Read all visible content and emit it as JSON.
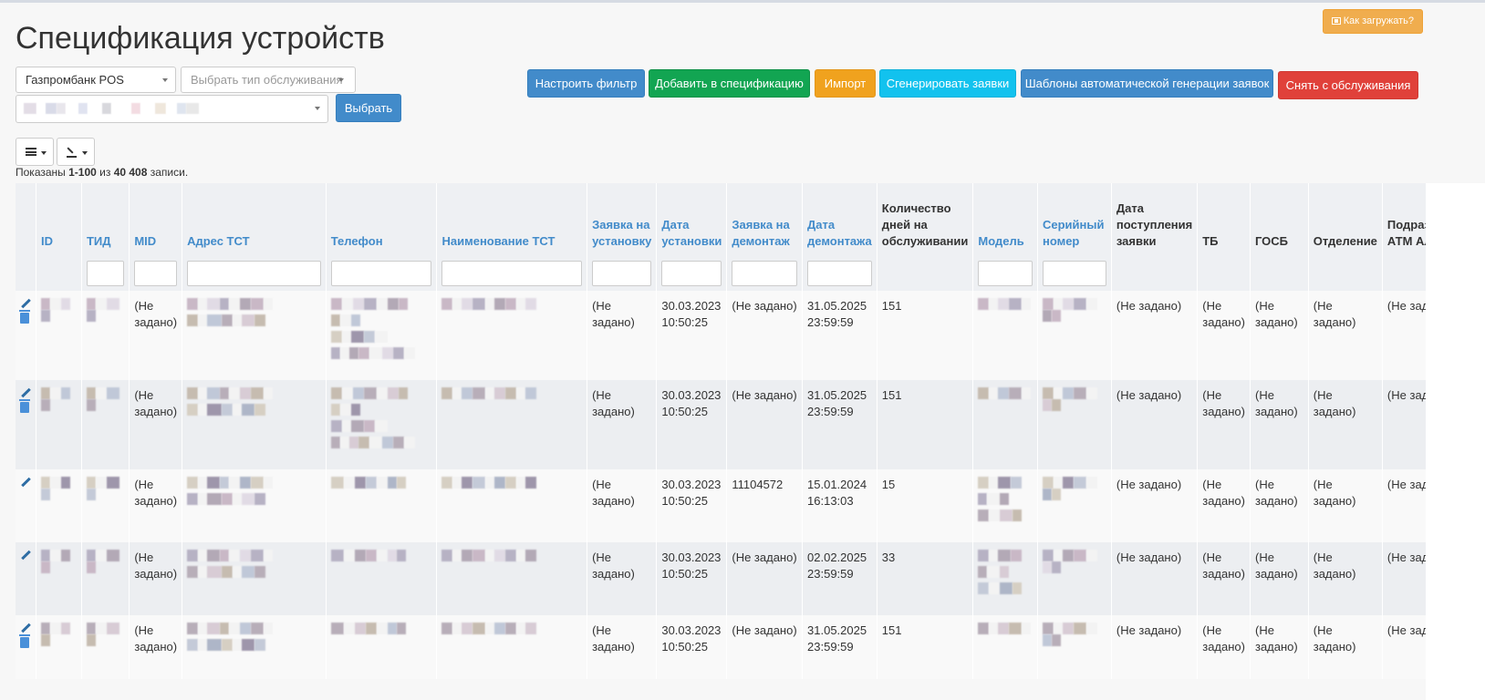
{
  "page": {
    "title": "Спецификация устройств",
    "how_to_upload": "Как загружать?"
  },
  "filters": {
    "bank_select": "Газпромбанк POS",
    "service_type_placeholder": "Выбрать тип обслуживания",
    "select_button": "Выбрать"
  },
  "toolbar": {
    "configure_filter": "Настроить фильтр",
    "add_to_spec": "Добавить в спецификацию",
    "import": "Импорт",
    "generate_requests": "Сгенерировать заявки",
    "auto_templates": "Шаблоны автоматической генерации заявок",
    "remove_from_service": "Снять с обслуживания"
  },
  "summary": {
    "prefix": "Показаны ",
    "range": "1-100",
    "middle": " из ",
    "total": "40 408",
    "suffix": " записи."
  },
  "table": {
    "headers": {
      "id": "ID",
      "tid": "ТИД",
      "mid": "MID",
      "address": "Адрес ТСТ",
      "phone": "Телефон",
      "name": "Наименование ТСТ",
      "install_request": "Заявка на установку",
      "install_date": "Дата установки",
      "dismantle_request": "Заявка на демонтаж",
      "dismantle_date": "Дата демонтажа",
      "days_in_service": "Количество дней на обслуживании",
      "model": "Модель",
      "serial": "Серийный номер",
      "request_date": "Дата поступления заявки",
      "tb": "ТБ",
      "gosb": "ГОСБ",
      "branch": "Отделение",
      "subdivision": "Подразделение АТМ Альфа"
    },
    "rows": [
      {
        "mid": "(Не задано)",
        "install_request": "(Не задано)",
        "install_date": "30.03.2023 10:50:25",
        "dismantle_request": "(Не задано)",
        "dismantle_date": "31.05.2025 23:59:59",
        "days": "151",
        "request_date": "(Не задано)",
        "tb": "(Не задано)",
        "gosb": "(Не задано)",
        "branch": "(Не задано)",
        "subdivision": "(Не задано)"
      },
      {
        "mid": "(Не задано)",
        "install_request": "(Не задано)",
        "install_date": "30.03.2023 10:50:25",
        "dismantle_request": "(Не задано)",
        "dismantle_date": "31.05.2025 23:59:59",
        "days": "151",
        "request_date": "(Не задано)",
        "tb": "(Не задано)",
        "gosb": "(Не задано)",
        "branch": "(Не задано)",
        "subdivision": "(Не задано)"
      },
      {
        "mid": "(Не задано)",
        "install_request": "(Не задано)",
        "install_date": "30.03.2023 10:50:25",
        "dismantle_request": "11104572",
        "dismantle_date": "15.01.2024 16:13:03",
        "days": "15",
        "request_date": "(Не задано)",
        "tb": "(Не задано)",
        "gosb": "(Не задано)",
        "branch": "(Не задано)",
        "subdivision": "(Не задано)"
      },
      {
        "mid": "(Не задано)",
        "install_request": "(Не задано)",
        "install_date": "30.03.2023 10:50:25",
        "dismantle_request": "(Не задано)",
        "dismantle_date": "02.02.2025 23:59:59",
        "days": "33",
        "request_date": "(Не задано)",
        "tb": "(Не задано)",
        "gosb": "(Не задано)",
        "branch": "(Не задано)",
        "subdivision": "(Не задано)"
      },
      {
        "mid": "(Не задано)",
        "install_request": "(Не задано)",
        "install_date": "30.03.2023 10:50:25",
        "dismantle_request": "(Не задано)",
        "dismantle_date": "31.05.2025 23:59:59",
        "days": "151",
        "request_date": "(Не задано)",
        "tb": "(Не задано)",
        "gosb": "(Не задано)",
        "branch": "(Не задано)",
        "subdivision": "(Не задано)"
      }
    ]
  },
  "colors": {
    "primary": "#428bca",
    "success": "#12a552",
    "warning": "#f0a21e",
    "info": "#12c2ee",
    "danger": "#e0413a"
  }
}
